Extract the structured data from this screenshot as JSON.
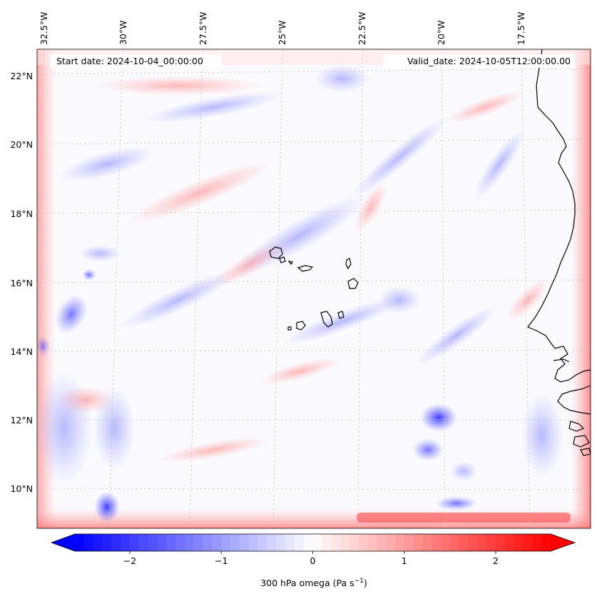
{
  "map": {
    "start_date_label": "Start date: 2024-10-04_00:00:00",
    "valid_date_label": "Valid_date: 2024-10-05T12:00:00.00",
    "lon_labels": [
      "32.5°W",
      "30°W",
      "27.5°W",
      "25°W",
      "22.5°W",
      "20°W",
      "17.5°W"
    ],
    "lat_labels": [
      "22°N",
      "20°N",
      "18°N",
      "16°N",
      "14°N",
      "12°N",
      "10°N"
    ],
    "lon_range_deg_w": [
      33.0,
      15.8
    ],
    "lat_range_deg_n": [
      8.9,
      22.8
    ],
    "coastline_color": "#000000",
    "gridline_color": "#c8c8c8"
  },
  "colorbar": {
    "label_text": "300 hPa omega (Pa s",
    "label_sup": "−1",
    "label_close": ")",
    "tick_labels": [
      "−2",
      "−1",
      "0",
      "1",
      "2"
    ],
    "tick_values": [
      -2,
      -1,
      0,
      1,
      2
    ],
    "range": [
      -2.6,
      2.6
    ],
    "n_levels": 52,
    "negative_color": "#0000ff",
    "neutral_color": "#ffffff",
    "positive_color": "#ff0000",
    "extend": "both"
  }
}
